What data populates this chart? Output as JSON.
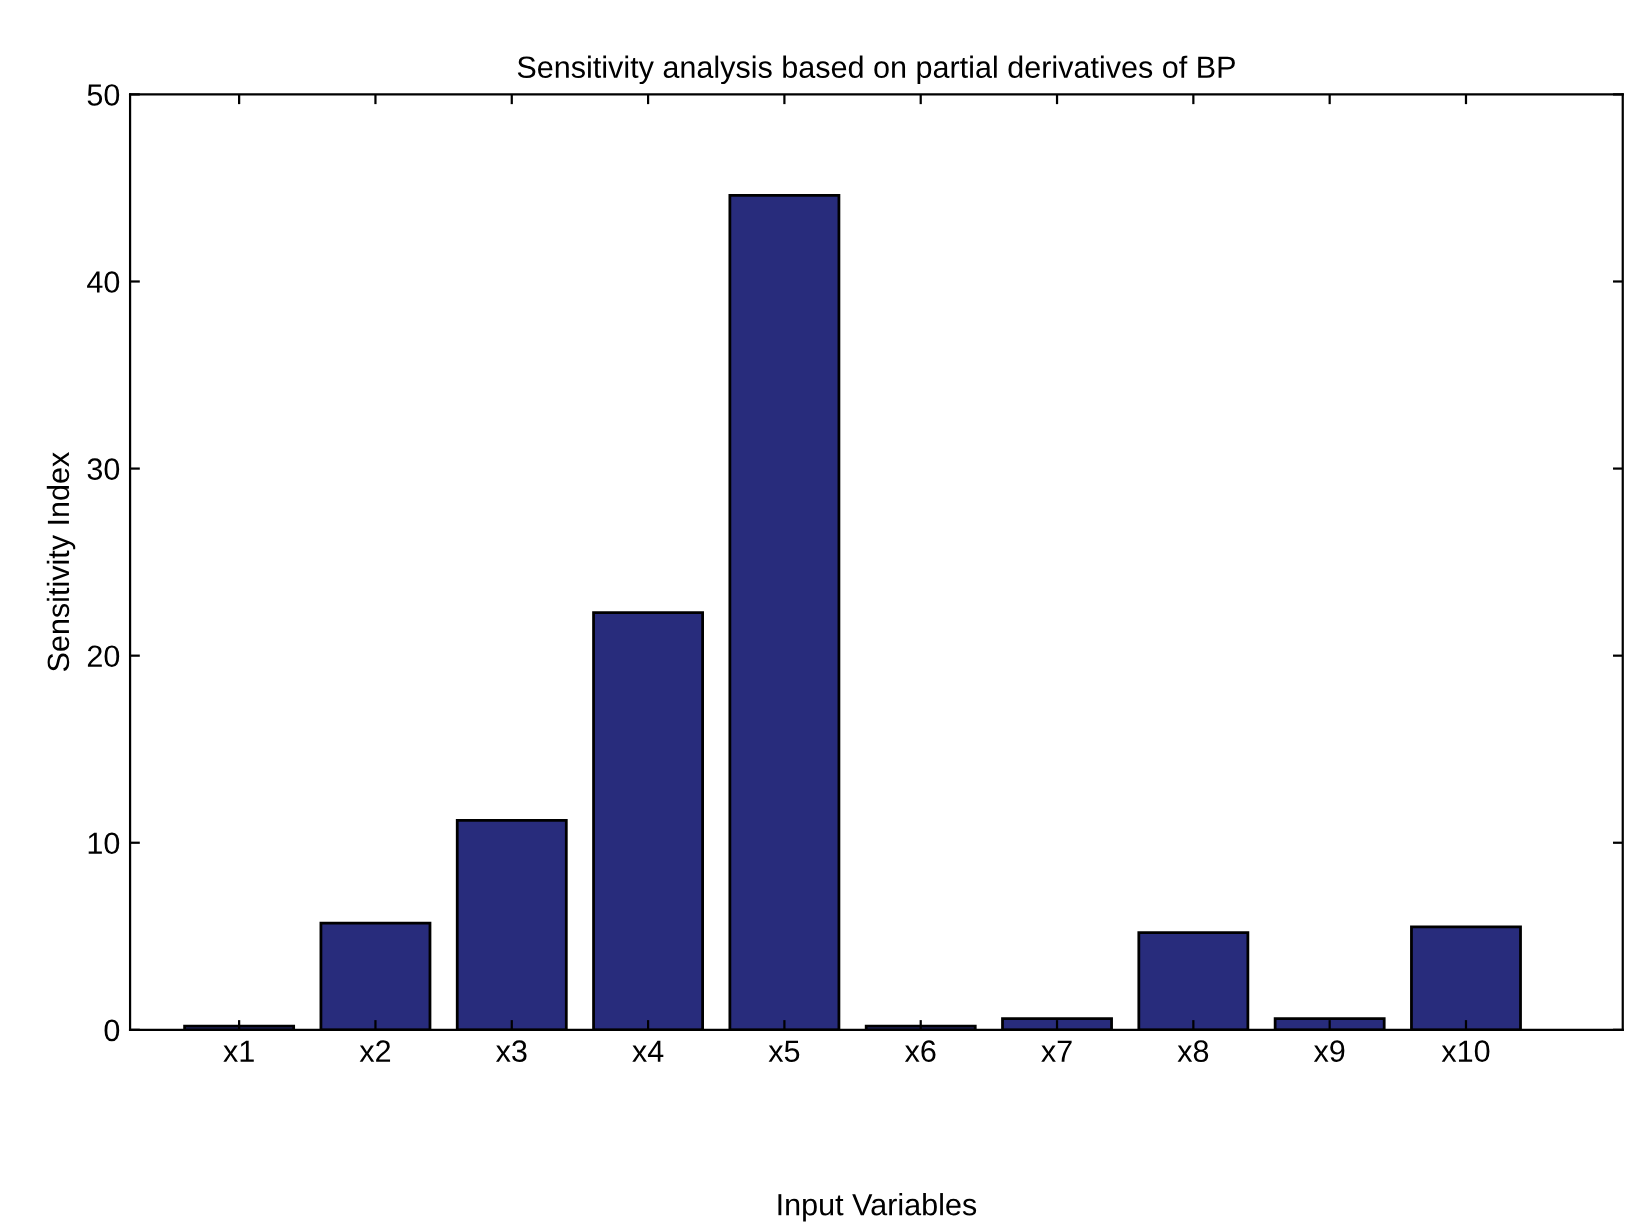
{
  "chart_data": {
    "type": "bar",
    "title": "Sensitivity analysis based on partial derivatives of BP",
    "xlabel": "Input Variables",
    "ylabel": "Sensitivity Index",
    "categories": [
      "x1",
      "x2",
      "x3",
      "x4",
      "x5",
      "x6",
      "x7",
      "x8",
      "x9",
      "x10"
    ],
    "values": [
      0.2,
      5.7,
      11.2,
      22.3,
      44.6,
      0.2,
      0.6,
      5.2,
      0.6,
      5.5
    ],
    "color": "#282c7c",
    "ylim": [
      0,
      50
    ],
    "yticks": [
      0,
      10,
      20,
      30,
      40,
      50
    ],
    "grid": false,
    "legend": false
  }
}
